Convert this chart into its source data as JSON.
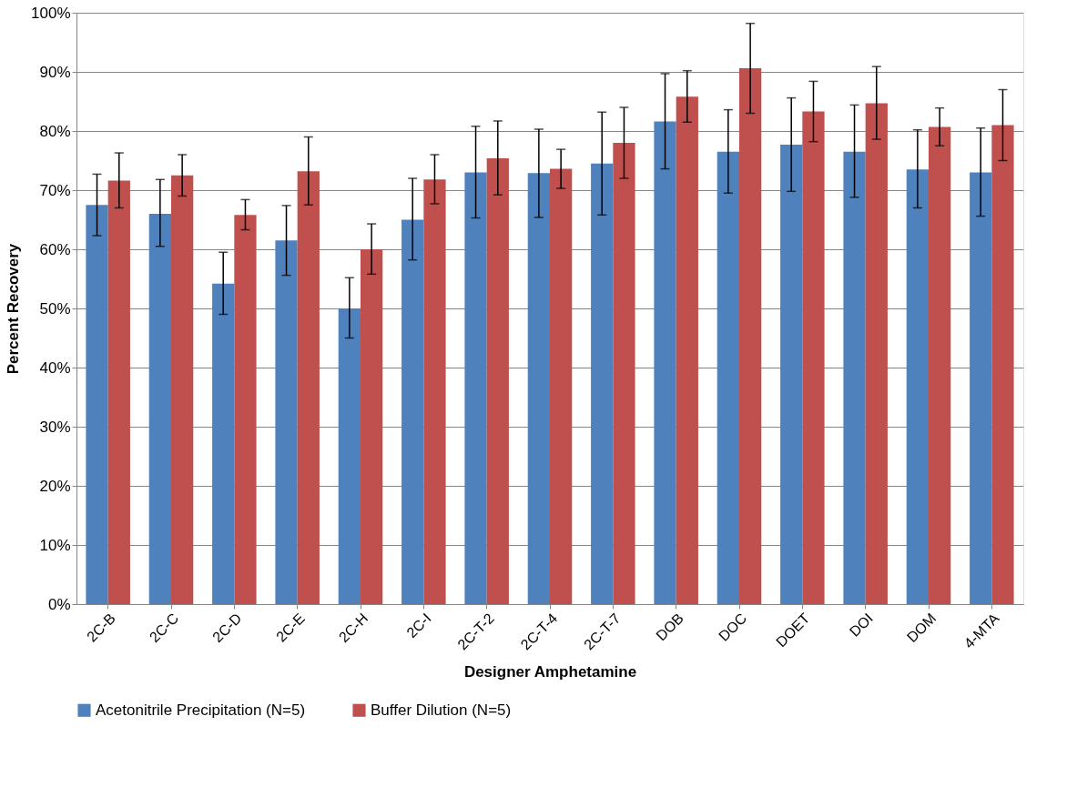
{
  "chart_data": {
    "type": "bar",
    "xlabel": "Designer Amphetamine",
    "ylabel": "Percent Recovery",
    "categories": [
      "2C-B",
      "2C-C",
      "2C-D",
      "2C-E",
      "2C-H",
      "2C-I",
      "2C-T-2",
      "2C-T-4",
      "2C-T-7",
      "DOB",
      "DOC",
      "DOET",
      "DOI",
      "DOM",
      "4-MTA"
    ],
    "series": [
      {
        "name": "Acetonitrile Precipitation (N=5)",
        "color": "#4f81bd",
        "values": [
          67.5,
          66,
          54.2,
          61.5,
          50,
          65,
          73,
          72.9,
          74.5,
          81.6,
          76.5,
          77.7,
          76.5,
          73.5,
          73
        ],
        "errors": [
          [
            62.3,
            72.7
          ],
          [
            60.5,
            71.8
          ],
          [
            49,
            59.5
          ],
          [
            55.6,
            67.4
          ],
          [
            45,
            55.2
          ],
          [
            58.2,
            72
          ],
          [
            65.3,
            80.8
          ],
          [
            65.4,
            80.3
          ],
          [
            65.8,
            83.2
          ],
          [
            73.6,
            89.7
          ],
          [
            69.5,
            83.6
          ],
          [
            69.8,
            85.6
          ],
          [
            68.8,
            84.4
          ],
          [
            67,
            80.2
          ],
          [
            65.6,
            80.5
          ]
        ]
      },
      {
        "name": "Buffer Dilution (N=5)",
        "color": "#c0504d",
        "values": [
          71.6,
          72.5,
          65.8,
          73.2,
          60,
          71.8,
          75.4,
          73.6,
          78,
          85.8,
          90.6,
          83.3,
          84.7,
          80.7,
          81
        ],
        "errors": [
          [
            67,
            76.3
          ],
          [
            69,
            76
          ],
          [
            63.3,
            68.4
          ],
          [
            67.5,
            79
          ],
          [
            55.8,
            64.3
          ],
          [
            67.7,
            76
          ],
          [
            69.2,
            81.7
          ],
          [
            70.3,
            76.9
          ],
          [
            72,
            84
          ],
          [
            81.5,
            90.2
          ],
          [
            83,
            98.2
          ],
          [
            78.2,
            88.4
          ],
          [
            78.6,
            90.9
          ],
          [
            77.5,
            83.9
          ],
          [
            75,
            87
          ]
        ]
      }
    ],
    "ylim": [
      0,
      100
    ],
    "yticks": [
      {
        "value": 0,
        "label": "0%"
      },
      {
        "value": 10,
        "label": "10%"
      },
      {
        "value": 20,
        "label": "20%"
      },
      {
        "value": 30,
        "label": "30%"
      },
      {
        "value": 40,
        "label": "40%"
      },
      {
        "value": 50,
        "label": "50%"
      },
      {
        "value": 60,
        "label": "60%"
      },
      {
        "value": 70,
        "label": "70%"
      },
      {
        "value": 80,
        "label": "80%"
      },
      {
        "value": 90,
        "label": "90%"
      },
      {
        "value": 100,
        "label": "100%"
      }
    ],
    "grid": "y",
    "legend": "bottom"
  }
}
